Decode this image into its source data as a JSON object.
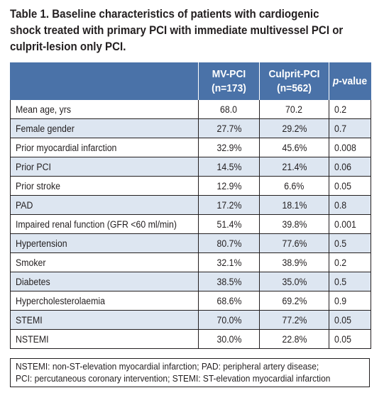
{
  "caption": [
    "Table 1. Baseline characteristics of patients with cardiogenic",
    "shock treated with primary PCI with immediate multivessel PCI or",
    "culprit-lesion only PCI."
  ],
  "table": {
    "headers": [
      {
        "line1": "",
        "line2": ""
      },
      {
        "line1": "MV-PCI",
        "line2": "(n=173)"
      },
      {
        "line1": "Culprit-PCI",
        "line2": "(n=562)"
      },
      {
        "line1_italic": "p",
        "line1_rest": "-value"
      }
    ],
    "rows": [
      {
        "label": "Mean age, yrs",
        "mv": "68.0",
        "culprit": "70.2",
        "p": "0.2"
      },
      {
        "label": "Female gender",
        "mv": "27.7%",
        "culprit": "29.2%",
        "p": "0.7"
      },
      {
        "label": "Prior myocardial infarction",
        "mv": "32.9%",
        "culprit": "45.6%",
        "p": "0.008"
      },
      {
        "label": "Prior PCI",
        "mv": "14.5%",
        "culprit": "21.4%",
        "p": "0.06"
      },
      {
        "label": "Prior stroke",
        "mv": "12.9%",
        "culprit": "6.6%",
        "p": "0.05"
      },
      {
        "label": "PAD",
        "mv": "17.2%",
        "culprit": "18.1%",
        "p": "0.8"
      },
      {
        "label": "Impaired renal function (GFR <60 ml/min)",
        "mv": "51.4%",
        "culprit": "39.8%",
        "p": "0.001"
      },
      {
        "label": "Hypertension",
        "mv": "80.7%",
        "culprit": "77.6%",
        "p": "0.5"
      },
      {
        "label": "Smoker",
        "mv": "32.1%",
        "culprit": "38.9%",
        "p": "0.2"
      },
      {
        "label": "Diabetes",
        "mv": "38.5%",
        "culprit": "35.0%",
        "p": "0.5"
      },
      {
        "label": "Hypercholesterolaemia",
        "mv": "68.6%",
        "culprit": "69.2%",
        "p": "0.9"
      },
      {
        "label": "STEMI",
        "mv": "70.0%",
        "culprit": "77.2%",
        "p": "0.05"
      },
      {
        "label": "NSTEMI",
        "mv": "30.0%",
        "culprit": "22.8%",
        "p": "0.05"
      }
    ]
  },
  "footnote": [
    "NSTEMI: non-ST-elevation myocardial infarction; PAD: peripheral artery disease;",
    "PCI: percutaneous coronary intervention; STEMI: ST-elevation myocardial infarction"
  ],
  "colors": {
    "header_bg": "#4a72a8",
    "stripe_bg": "#dde6f1",
    "text": "#231f20"
  }
}
